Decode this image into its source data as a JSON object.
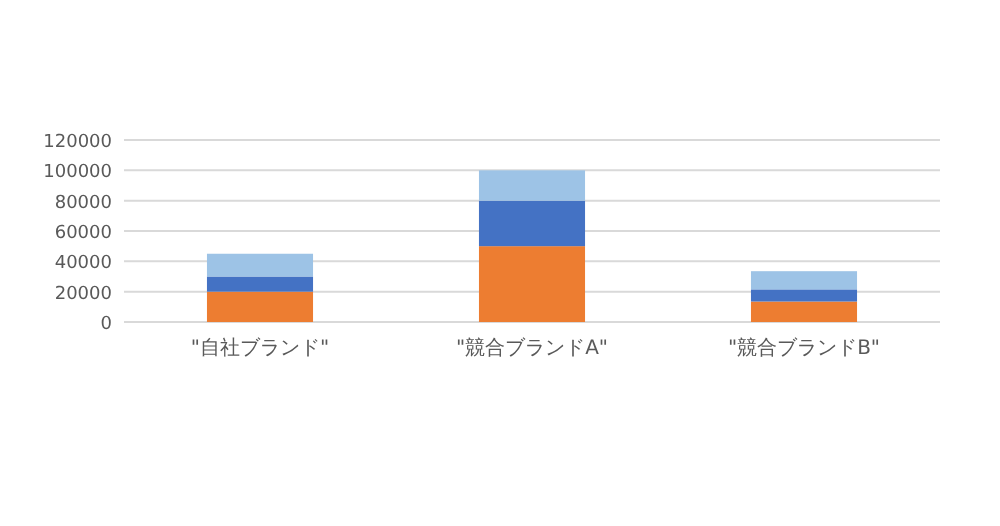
{
  "chart_data": {
    "type": "bar",
    "stacked": true,
    "categories": [
      "\"自社ブランド\"",
      "\"競合ブランドA\"",
      "\"競合ブランドB\""
    ],
    "series": [
      {
        "color": "#ed7d31",
        "values": [
          20000,
          50000,
          13500
        ]
      },
      {
        "color": "#4472c4",
        "values": [
          10000,
          30000,
          8000
        ]
      },
      {
        "color": "#9dc3e6",
        "values": [
          15000,
          20000,
          12000
        ]
      }
    ],
    "ylim": [
      0,
      120000
    ],
    "yticks": [
      0,
      20000,
      40000,
      60000,
      80000,
      100000,
      120000
    ],
    "grid": "y"
  }
}
